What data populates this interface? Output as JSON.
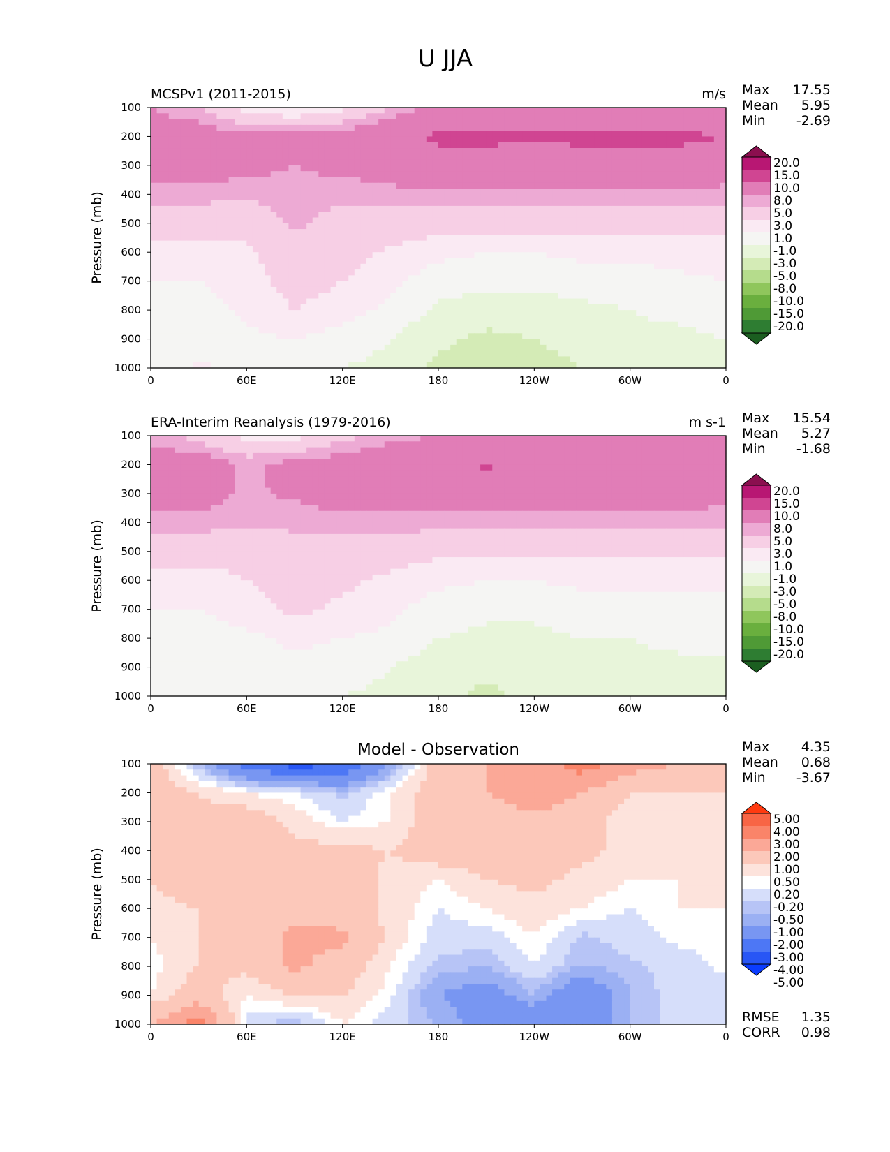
{
  "figure_title": "U JJA",
  "colors": {
    "wind_levels": [
      "#1b5e20",
      "#2e7d32",
      "#4f9a36",
      "#6aaf3e",
      "#8fc65c",
      "#b5dc8c",
      "#d4ebb6",
      "#e8f5da",
      "#f5f5f3",
      "#faeaf3",
      "#f7cfe5",
      "#edaad4",
      "#e17db7",
      "#d04592",
      "#b81773",
      "#8b0f4f"
    ],
    "diff_levels": [
      "#0a3cff",
      "#2856f5",
      "#4d77f5",
      "#7896f2",
      "#9bb0f3",
      "#b7c4f6",
      "#d6defa",
      "#ffffff",
      "#fde3dc",
      "#fcc8ba",
      "#fba897",
      "#fa8469",
      "#f86545",
      "#ff3a10"
    ]
  },
  "panels": [
    {
      "title_left": "MCSPv1 (2011-2015)",
      "title_right": "m/s",
      "title_center": "",
      "stats": [
        {
          "label": "Max",
          "value": "17.55"
        },
        {
          "label": "Mean",
          "value": "5.95"
        },
        {
          "label": "Min",
          "value": "-2.69"
        }
      ],
      "colorbar_labels": [
        "20.0",
        "15.0",
        "10.0",
        "8.0",
        "5.0",
        "3.0",
        "1.0",
        "-1.0",
        "-3.0",
        "-5.0",
        "-8.0",
        "-10.0",
        "-15.0",
        "-20.0"
      ],
      "extra_stats": []
    },
    {
      "title_left": "ERA-Interim Reanalysis (1979-2016)",
      "title_right": "m s-1",
      "title_center": "",
      "stats": [
        {
          "label": "Max",
          "value": "15.54"
        },
        {
          "label": "Mean",
          "value": "5.27"
        },
        {
          "label": "Min",
          "value": "-1.68"
        }
      ],
      "colorbar_labels": [
        "20.0",
        "15.0",
        "10.0",
        "8.0",
        "5.0",
        "3.0",
        "1.0",
        "-1.0",
        "-3.0",
        "-5.0",
        "-8.0",
        "-10.0",
        "-15.0",
        "-20.0"
      ],
      "extra_stats": []
    },
    {
      "title_left": "",
      "title_right": "",
      "title_center": "Model - Observation",
      "stats": [
        {
          "label": "Max",
          "value": "4.35"
        },
        {
          "label": "Mean",
          "value": "0.68"
        },
        {
          "label": "Min",
          "value": "-3.67"
        }
      ],
      "colorbar_labels": [
        "5.00",
        "4.00",
        "3.00",
        "2.00",
        "1.00",
        "0.50",
        "0.20",
        "-0.20",
        "-0.50",
        "-1.00",
        "-2.00",
        "-3.00",
        "-4.00",
        "-5.00"
      ],
      "extra_stats": [
        {
          "label": "RMSE",
          "value": "1.35"
        },
        {
          "label": "CORR",
          "value": "0.98"
        }
      ]
    }
  ],
  "chart_data": [
    {
      "type": "heatmap",
      "title": "MCSPv1 (2011-2015)",
      "units": "m/s",
      "ylabel": "Pressure (mb)",
      "xticks": [
        "0",
        "60E",
        "120E",
        "180",
        "120W",
        "60W",
        "0"
      ],
      "yticks": [
        "100",
        "200",
        "300",
        "400",
        "500",
        "600",
        "700",
        "800",
        "900",
        "1000"
      ],
      "xlim": [
        0,
        360
      ],
      "ylim": [
        1000,
        100
      ],
      "levels": [
        -20,
        -15,
        -10,
        -8,
        -5,
        -3,
        -1,
        1,
        3,
        5,
        8,
        10,
        15,
        20
      ],
      "x": [
        0,
        30,
        60,
        90,
        120,
        150,
        180,
        210,
        240,
        270,
        300,
        330,
        360
      ],
      "y": [
        100,
        200,
        300,
        400,
        500,
        600,
        700,
        800,
        900,
        1000
      ],
      "z": [
        [
          10,
          8,
          4,
          2,
          4,
          8,
          11,
          11,
          11,
          11,
          11,
          11,
          11
        ],
        [
          12,
          12,
          11,
          11,
          12,
          13,
          16,
          16,
          15.5,
          16,
          16,
          16,
          15
        ],
        [
          12,
          12,
          11,
          10,
          11,
          12,
          13,
          13,
          13,
          13,
          13,
          13,
          12
        ],
        [
          9,
          9,
          8.5,
          9,
          8.5,
          9,
          9.5,
          9.5,
          9.5,
          9.5,
          9.5,
          9.5,
          9
        ],
        [
          7,
          6,
          6,
          8.5,
          7,
          7,
          6,
          6,
          6,
          6,
          6,
          6,
          6
        ],
        [
          4,
          4,
          4.5,
          7,
          6,
          4.5,
          3.5,
          3,
          3,
          3.5,
          3.5,
          4,
          4
        ],
        [
          3,
          3,
          4,
          6,
          5,
          3.5,
          2,
          1.5,
          1.5,
          2,
          2,
          2.5,
          3
        ],
        [
          2,
          2,
          3.5,
          5,
          4,
          2.5,
          0.5,
          0,
          0,
          0.5,
          1,
          1.5,
          2
        ],
        [
          1.5,
          2,
          2.5,
          3,
          2,
          1,
          -0.5,
          -1.5,
          -1,
          -0.5,
          0.5,
          0.5,
          1
        ],
        [
          1,
          3.5,
          1.5,
          1.5,
          1,
          0.5,
          -1.5,
          -2.5,
          -1.5,
          -1,
          -1,
          -0.5,
          0
        ]
      ]
    },
    {
      "type": "heatmap",
      "title": "ERA-Interim Reanalysis (1979-2016)",
      "units": "m s-1",
      "ylabel": "Pressure (mb)",
      "xticks": [
        "0",
        "60E",
        "120E",
        "180",
        "120W",
        "60W",
        "0"
      ],
      "yticks": [
        "100",
        "200",
        "300",
        "400",
        "500",
        "600",
        "700",
        "800",
        "900",
        "1000"
      ],
      "xlim": [
        0,
        360
      ],
      "ylim": [
        1000,
        100
      ],
      "levels": [
        -20,
        -15,
        -10,
        -8,
        -5,
        -3,
        -1,
        1,
        3,
        5,
        8,
        10,
        15,
        20
      ],
      "x": [
        0,
        30,
        60,
        90,
        120,
        150,
        180,
        210,
        240,
        270,
        300,
        330,
        360
      ],
      "y": [
        100,
        200,
        300,
        400,
        500,
        600,
        700,
        800,
        900,
        1000
      ],
      "z": [
        [
          9,
          7,
          4,
          4,
          7,
          9,
          10,
          10,
          10,
          10,
          10,
          10,
          10
        ],
        [
          12,
          12,
          9.5,
          11,
          12,
          13,
          14,
          15.5,
          14,
          13.5,
          13.5,
          15,
          12
        ],
        [
          11.5,
          11.5,
          9.5,
          10.5,
          12,
          12,
          12,
          12,
          12,
          12,
          12,
          12,
          11
        ],
        [
          9,
          9,
          8.5,
          8.5,
          9,
          9,
          9,
          9,
          9,
          9,
          9,
          9,
          8.5
        ],
        [
          6.5,
          6,
          6,
          7,
          7,
          6,
          5.5,
          5.5,
          5.5,
          5.5,
          5.5,
          5.5,
          5.5
        ],
        [
          4,
          4,
          5,
          6.5,
          5.5,
          4.5,
          3.5,
          3,
          3,
          3.5,
          3.5,
          3.5,
          3.5
        ],
        [
          3,
          3,
          4,
          5.5,
          4.5,
          3.5,
          2,
          1.5,
          1.5,
          2,
          2,
          2.5,
          2.5
        ],
        [
          2,
          2,
          2.5,
          3.5,
          3,
          2.5,
          1,
          0.5,
          0.5,
          1,
          1,
          1.5,
          2
        ],
        [
          2,
          2,
          2,
          2.5,
          2,
          1,
          0,
          -0.5,
          0,
          0.5,
          0.5,
          0.5,
          0.5
        ],
        [
          1.5,
          1.5,
          1.5,
          1.5,
          1,
          0.5,
          -0.5,
          -1.5,
          -0.5,
          -0.5,
          -0.5,
          0,
          0
        ]
      ]
    },
    {
      "type": "heatmap",
      "title": "Model - Observation",
      "ylabel": "Pressure (mb)",
      "xticks": [
        "0",
        "60E",
        "120E",
        "180",
        "120W",
        "60W",
        "0"
      ],
      "yticks": [
        "100",
        "200",
        "300",
        "400",
        "500",
        "600",
        "700",
        "800",
        "900",
        "1000"
      ],
      "xlim": [
        0,
        360
      ],
      "ylim": [
        1000,
        100
      ],
      "levels": [
        -5,
        -4,
        -3,
        -2,
        -1,
        -0.5,
        -0.2,
        0.2,
        0.5,
        1,
        2,
        3,
        4,
        5
      ],
      "x": [
        0,
        30,
        60,
        90,
        120,
        150,
        180,
        210,
        240,
        270,
        300,
        330,
        360
      ],
      "y": [
        100,
        200,
        300,
        400,
        500,
        600,
        700,
        800,
        900,
        1000
      ],
      "z": [
        [
          1.5,
          -0.5,
          -2.5,
          -3.5,
          -3,
          -1,
          1.5,
          2,
          2.5,
          3.5,
          2.5,
          2,
          1.5
        ],
        [
          1.5,
          1,
          0.5,
          0.2,
          -0.3,
          0.5,
          1.5,
          2,
          2.5,
          2,
          1,
          1,
          1
        ],
        [
          1,
          1.2,
          1.5,
          0.8,
          0.2,
          0.5,
          1.5,
          1.5,
          1.8,
          1.5,
          0.5,
          0.8,
          0.8
        ],
        [
          1,
          1.5,
          1.5,
          1.2,
          1.2,
          1,
          1.5,
          1.5,
          1.5,
          1.2,
          0.8,
          0.8,
          0.8
        ],
        [
          1,
          1.5,
          1.5,
          1.5,
          1.5,
          0.8,
          0.5,
          1,
          1.2,
          0.8,
          0.5,
          0.5,
          0.8
        ],
        [
          0.8,
          1,
          1.5,
          1.8,
          1.5,
          0.8,
          0.2,
          0.5,
          0.8,
          0.5,
          0.2,
          0.5,
          0.5
        ],
        [
          0.5,
          1,
          1.5,
          2.2,
          2.2,
          0.8,
          0,
          0,
          0.5,
          -0.3,
          0,
          0.3,
          0.3
        ],
        [
          0.3,
          1,
          1.2,
          2.2,
          1.5,
          0.5,
          -0.3,
          -0.5,
          0.2,
          -0.5,
          -0.3,
          0,
          0.3
        ],
        [
          0.5,
          1.5,
          0.5,
          1,
          1,
          0.3,
          -1,
          -1.5,
          -0.5,
          -2,
          -0.5,
          0,
          0
        ],
        [
          2,
          3.5,
          0,
          -0.5,
          0.5,
          0,
          -0.5,
          -1.5,
          -2,
          -2,
          -0.5,
          0,
          0
        ]
      ]
    }
  ]
}
